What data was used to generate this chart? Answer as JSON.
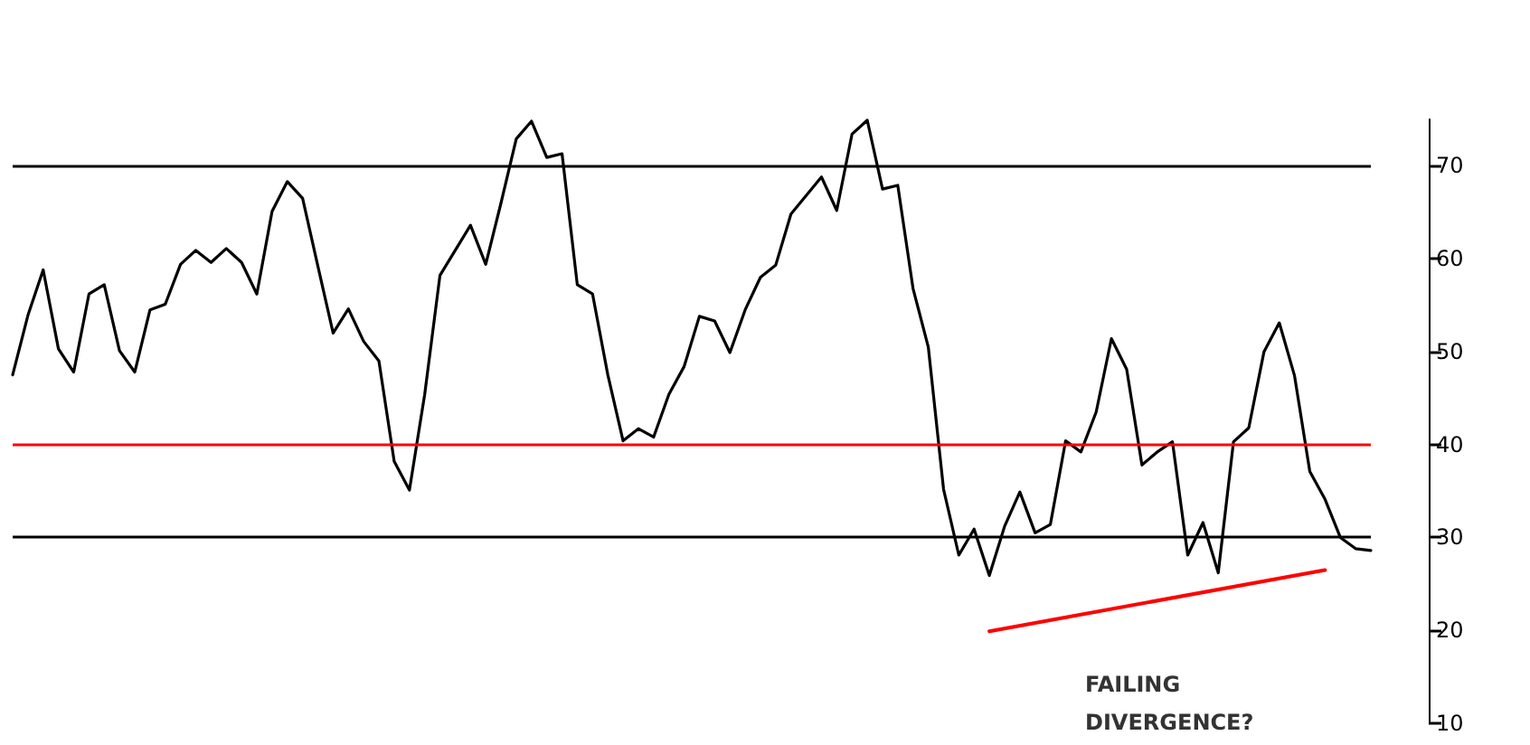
{
  "chart_data": {
    "type": "line",
    "categories": [
      null,
      null,
      null,
      null,
      null,
      null,
      null,
      null,
      null,
      null,
      null,
      null,
      null,
      null,
      null,
      null,
      null,
      null,
      null,
      null,
      null,
      null,
      null,
      null,
      null,
      null,
      null,
      null,
      null,
      null,
      null,
      null,
      null,
      null,
      null,
      null,
      null,
      null,
      null,
      null,
      null,
      null,
      null,
      null,
      null,
      null,
      null,
      null,
      null,
      null,
      null,
      null,
      null,
      null,
      null,
      null,
      null,
      null,
      null,
      null,
      null,
      null,
      null,
      null,
      null,
      null,
      null,
      null,
      null,
      null,
      null,
      null,
      null,
      null,
      null,
      null,
      null,
      null,
      null,
      null,
      null,
      null,
      null,
      null,
      null,
      null,
      null,
      null,
      null,
      null
    ],
    "series": [
      {
        "color": "#000000",
        "values": [
          47.5,
          53.9,
          58.8,
          50.3,
          47.8,
          56.2,
          57.2,
          50.1,
          47.8,
          54.5,
          55.1,
          59.4,
          60.9,
          59.6,
          61.1,
          59.6,
          56.2,
          65.1,
          68.3,
          66.5,
          59.2,
          52,
          54.6,
          51.1,
          49,
          38.2,
          35.1,
          45.4,
          58.2,
          60.9,
          63.6,
          59.4,
          66,
          72.9,
          74.8,
          70.9,
          71.3,
          57.2,
          56.2,
          47.5,
          40.4,
          41.7,
          40.8,
          45.4,
          48.4,
          53.8,
          53.3,
          49.9,
          54.5,
          58,
          59.3,
          64.8,
          66.8,
          68.8,
          65.2,
          73.4,
          74.9,
          67.5,
          67.9,
          56.8,
          50.5,
          35.2,
          28.1,
          30.9,
          25.9,
          31.2,
          34.9,
          30.5,
          31.4,
          40.4,
          39.2,
          43.5,
          51.4,
          48.1,
          37.8,
          39.2,
          40.3,
          28.1,
          31.6,
          26.2,
          40.3,
          41.8,
          50,
          53.1,
          47.4,
          37.1,
          34.1,
          30,
          28.8,
          28.6
        ]
      },
      {
        "color": "#ff0000",
        "values": [
          null,
          null,
          null,
          null,
          null,
          null,
          null,
          null,
          null,
          null,
          null,
          null,
          null,
          null,
          null,
          null,
          null,
          null,
          null,
          null,
          null,
          null,
          null,
          null,
          null,
          null,
          null,
          null,
          null,
          null,
          null,
          null,
          null,
          null,
          null,
          null,
          null,
          null,
          null,
          null,
          null,
          null,
          null,
          null,
          null,
          null,
          null,
          null,
          null,
          null,
          null,
          null,
          null,
          null,
          null,
          null,
          null,
          null,
          null,
          null,
          null,
          null,
          null,
          null,
          19.9,
          null,
          null,
          null,
          null,
          null,
          null,
          null,
          null,
          null,
          null,
          null,
          null,
          null,
          null,
          null,
          null,
          null,
          null,
          null,
          null,
          null,
          26.5,
          null,
          null,
          null
        ]
      }
    ],
    "ylim": [
      10,
      75
    ],
    "yticks": [
      10,
      20,
      30,
      40,
      50,
      60,
      70
    ],
    "ref_lines": [
      {
        "axis": "y",
        "value": 70,
        "color": "#000000"
      },
      {
        "axis": "y",
        "value": 40,
        "color": "#ff0000"
      },
      {
        "axis": "y",
        "value": 30,
        "color": "#000000"
      }
    ],
    "annotations": [
      "FAILING\nDIVERGENCE?"
    ],
    "grid": false,
    "marker": "none",
    "line_style": "solid"
  }
}
